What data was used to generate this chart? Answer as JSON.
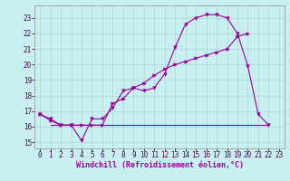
{
  "xlabel": "Windchill (Refroidissement éolien,°C)",
  "bg_color": "#c8f0f0",
  "line_color": "#990099",
  "grid_color": "#aad4d4",
  "xlim": [
    -0.5,
    23.5
  ],
  "ylim": [
    14.6,
    23.8
  ],
  "yticks": [
    15,
    16,
    17,
    18,
    19,
    20,
    21,
    22,
    23
  ],
  "xticks": [
    0,
    1,
    2,
    3,
    4,
    5,
    6,
    7,
    8,
    9,
    10,
    11,
    12,
    13,
    14,
    15,
    16,
    17,
    18,
    19,
    20,
    21,
    22,
    23
  ],
  "series1_x": [
    0,
    1,
    2,
    3,
    4,
    5,
    6,
    7,
    8,
    9,
    10,
    11,
    12,
    13,
    14,
    15,
    16,
    17,
    18,
    19,
    20,
    21,
    22
  ],
  "series1_y": [
    16.8,
    16.5,
    16.1,
    16.1,
    15.1,
    16.5,
    16.5,
    17.2,
    18.3,
    18.5,
    18.3,
    18.5,
    19.4,
    21.1,
    22.6,
    23.0,
    23.2,
    23.2,
    23.0,
    22.0,
    19.9,
    16.8,
    16.1
  ],
  "series2_x": [
    0,
    1,
    2,
    3,
    4,
    5,
    6,
    7,
    8,
    9,
    10,
    11,
    12,
    13,
    14,
    15,
    16,
    17,
    18,
    19,
    20
  ],
  "series2_y": [
    16.8,
    16.4,
    16.1,
    16.1,
    16.1,
    16.1,
    16.1,
    17.5,
    17.8,
    18.5,
    18.8,
    19.3,
    19.7,
    20.0,
    20.2,
    20.4,
    20.6,
    20.8,
    21.0,
    21.8,
    22.0
  ],
  "series3_x": [
    1,
    22
  ],
  "series3_y": [
    16.1,
    16.1
  ],
  "xlabel_fontsize": 6,
  "tick_fontsize": 5.5
}
